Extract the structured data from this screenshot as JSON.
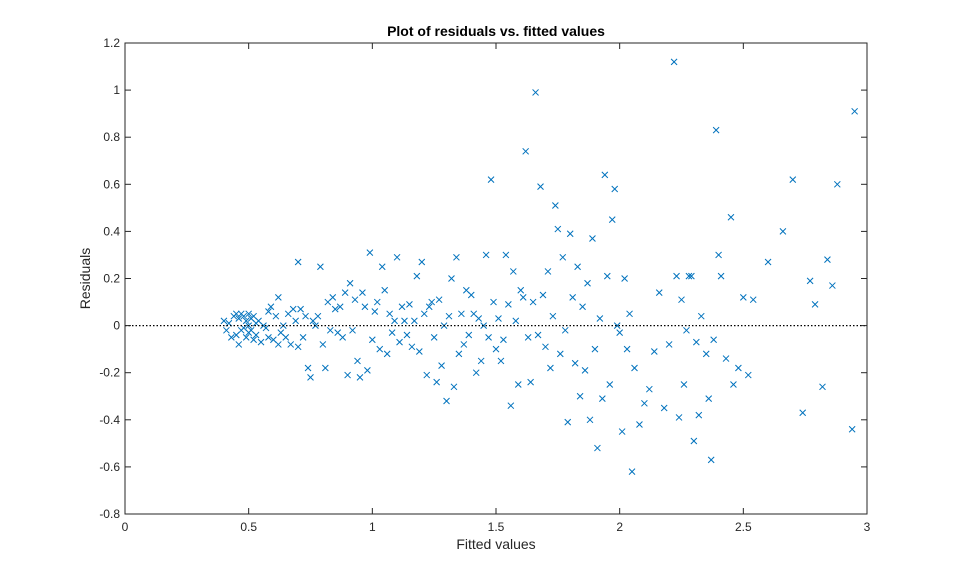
{
  "chart_data": {
    "type": "scatter",
    "title": "Plot of residuals vs. fitted values",
    "xlabel": "Fitted values",
    "ylabel": "Residuals",
    "xlim": [
      0,
      3
    ],
    "ylim": [
      -0.8,
      1.2
    ],
    "xticks": [
      0,
      0.5,
      1,
      1.5,
      2,
      2.5,
      3
    ],
    "xtick_labels": [
      "0",
      "0.5",
      "1",
      "1.5",
      "2",
      "2.5",
      "3"
    ],
    "yticks": [
      -0.8,
      -0.6,
      -0.4,
      -0.2,
      0,
      0.2,
      0.4,
      0.6,
      0.8,
      1,
      1.2
    ],
    "ytick_labels": [
      "-0.8",
      "-0.6",
      "-0.4",
      "-0.2",
      "0",
      "0.2",
      "0.4",
      "0.6",
      "0.8",
      "1",
      "1.2"
    ],
    "grid": false,
    "marker": "x",
    "marker_color": "#0072BD",
    "reference_line": {
      "y": 0,
      "style": "dotted",
      "color": "#000000"
    },
    "points": [
      [
        0.4,
        0.02
      ],
      [
        0.41,
        -0.02
      ],
      [
        0.42,
        0.01
      ],
      [
        0.43,
        -0.05
      ],
      [
        0.44,
        0.04
      ],
      [
        0.45,
        0.05
      ],
      [
        0.45,
        -0.04
      ],
      [
        0.46,
        0.03
      ],
      [
        0.46,
        -0.08
      ],
      [
        0.47,
        0.05
      ],
      [
        0.47,
        -0.02
      ],
      [
        0.48,
        0.04
      ],
      [
        0.48,
        -0.01
      ],
      [
        0.49,
        0.02
      ],
      [
        0.49,
        -0.05
      ],
      [
        0.5,
        0.05
      ],
      [
        0.5,
        0.0
      ],
      [
        0.5,
        -0.03
      ],
      [
        0.51,
        0.03
      ],
      [
        0.51,
        -0.02
      ],
      [
        0.52,
        0.04
      ],
      [
        0.52,
        -0.06
      ],
      [
        0.53,
        0.01
      ],
      [
        0.53,
        -0.04
      ],
      [
        0.54,
        0.02
      ],
      [
        0.55,
        -0.07
      ],
      [
        0.56,
        0.0
      ],
      [
        0.57,
        -0.01
      ],
      [
        0.58,
        0.06
      ],
      [
        0.58,
        -0.05
      ],
      [
        0.59,
        0.08
      ],
      [
        0.6,
        -0.06
      ],
      [
        0.61,
        0.04
      ],
      [
        0.62,
        -0.08
      ],
      [
        0.62,
        0.12
      ],
      [
        0.63,
        -0.03
      ],
      [
        0.64,
        0.0
      ],
      [
        0.65,
        -0.05
      ],
      [
        0.66,
        0.05
      ],
      [
        0.67,
        -0.08
      ],
      [
        0.68,
        0.07
      ],
      [
        0.69,
        0.02
      ],
      [
        0.7,
        0.27
      ],
      [
        0.7,
        -0.09
      ],
      [
        0.71,
        0.07
      ],
      [
        0.72,
        -0.05
      ],
      [
        0.73,
        0.04
      ],
      [
        0.74,
        -0.18
      ],
      [
        0.75,
        -0.22
      ],
      [
        0.76,
        0.02
      ],
      [
        0.77,
        0.0
      ],
      [
        0.78,
        0.04
      ],
      [
        0.79,
        0.25
      ],
      [
        0.8,
        -0.08
      ],
      [
        0.81,
        -0.18
      ],
      [
        0.82,
        0.1
      ],
      [
        0.83,
        -0.02
      ],
      [
        0.84,
        0.12
      ],
      [
        0.85,
        0.07
      ],
      [
        0.86,
        -0.03
      ],
      [
        0.87,
        0.08
      ],
      [
        0.88,
        -0.05
      ],
      [
        0.89,
        0.14
      ],
      [
        0.9,
        -0.21
      ],
      [
        0.91,
        0.18
      ],
      [
        0.92,
        -0.02
      ],
      [
        0.93,
        0.11
      ],
      [
        0.94,
        -0.15
      ],
      [
        0.95,
        -0.22
      ],
      [
        0.96,
        0.14
      ],
      [
        0.97,
        0.08
      ],
      [
        0.98,
        -0.19
      ],
      [
        0.99,
        0.31
      ],
      [
        1.0,
        -0.06
      ],
      [
        1.01,
        0.06
      ],
      [
        1.02,
        0.1
      ],
      [
        1.03,
        -0.1
      ],
      [
        1.04,
        0.25
      ],
      [
        1.05,
        0.15
      ],
      [
        1.06,
        -0.12
      ],
      [
        1.07,
        0.05
      ],
      [
        1.08,
        -0.03
      ],
      [
        1.09,
        0.02
      ],
      [
        1.1,
        0.29
      ],
      [
        1.11,
        -0.07
      ],
      [
        1.12,
        0.08
      ],
      [
        1.13,
        0.02
      ],
      [
        1.14,
        -0.04
      ],
      [
        1.15,
        0.09
      ],
      [
        1.16,
        -0.09
      ],
      [
        1.17,
        0.02
      ],
      [
        1.18,
        0.21
      ],
      [
        1.19,
        -0.11
      ],
      [
        1.2,
        0.27
      ],
      [
        1.21,
        0.05
      ],
      [
        1.22,
        -0.21
      ],
      [
        1.23,
        0.08
      ],
      [
        1.24,
        0.1
      ],
      [
        1.25,
        -0.05
      ],
      [
        1.26,
        -0.24
      ],
      [
        1.27,
        0.11
      ],
      [
        1.28,
        -0.17
      ],
      [
        1.29,
        0.0
      ],
      [
        1.3,
        -0.32
      ],
      [
        1.31,
        0.04
      ],
      [
        1.32,
        0.2
      ],
      [
        1.33,
        -0.26
      ],
      [
        1.34,
        0.29
      ],
      [
        1.35,
        -0.12
      ],
      [
        1.36,
        0.05
      ],
      [
        1.37,
        -0.08
      ],
      [
        1.38,
        0.15
      ],
      [
        1.39,
        -0.04
      ],
      [
        1.4,
        0.13
      ],
      [
        1.41,
        0.05
      ],
      [
        1.42,
        -0.2
      ],
      [
        1.43,
        0.03
      ],
      [
        1.44,
        -0.15
      ],
      [
        1.45,
        0.0
      ],
      [
        1.46,
        0.3
      ],
      [
        1.47,
        -0.05
      ],
      [
        1.48,
        0.62
      ],
      [
        1.49,
        0.1
      ],
      [
        1.5,
        -0.1
      ],
      [
        1.51,
        0.03
      ],
      [
        1.52,
        -0.15
      ],
      [
        1.53,
        -0.06
      ],
      [
        1.54,
        0.3
      ],
      [
        1.55,
        0.09
      ],
      [
        1.56,
        -0.34
      ],
      [
        1.57,
        0.23
      ],
      [
        1.58,
        0.02
      ],
      [
        1.59,
        -0.25
      ],
      [
        1.6,
        0.15
      ],
      [
        1.61,
        0.12
      ],
      [
        1.62,
        0.74
      ],
      [
        1.63,
        -0.05
      ],
      [
        1.64,
        -0.24
      ],
      [
        1.65,
        0.1
      ],
      [
        1.66,
        0.99
      ],
      [
        1.67,
        -0.04
      ],
      [
        1.68,
        0.59
      ],
      [
        1.69,
        0.13
      ],
      [
        1.7,
        -0.09
      ],
      [
        1.71,
        0.23
      ],
      [
        1.72,
        -0.18
      ],
      [
        1.73,
        0.04
      ],
      [
        1.74,
        0.51
      ],
      [
        1.75,
        0.41
      ],
      [
        1.76,
        -0.12
      ],
      [
        1.77,
        0.29
      ],
      [
        1.78,
        -0.02
      ],
      [
        1.79,
        -0.41
      ],
      [
        1.8,
        0.39
      ],
      [
        1.81,
        0.12
      ],
      [
        1.82,
        -0.16
      ],
      [
        1.83,
        0.25
      ],
      [
        1.84,
        -0.3
      ],
      [
        1.85,
        0.08
      ],
      [
        1.86,
        -0.19
      ],
      [
        1.87,
        0.18
      ],
      [
        1.88,
        -0.4
      ],
      [
        1.89,
        0.37
      ],
      [
        1.9,
        -0.1
      ],
      [
        1.91,
        -0.52
      ],
      [
        1.92,
        0.03
      ],
      [
        1.93,
        -0.31
      ],
      [
        1.94,
        0.64
      ],
      [
        1.95,
        0.21
      ],
      [
        1.96,
        -0.25
      ],
      [
        1.97,
        0.45
      ],
      [
        1.98,
        0.58
      ],
      [
        1.99,
        0.0
      ],
      [
        2.0,
        -0.03
      ],
      [
        2.01,
        -0.45
      ],
      [
        2.02,
        0.2
      ],
      [
        2.03,
        -0.1
      ],
      [
        2.04,
        0.05
      ],
      [
        2.05,
        -0.62
      ],
      [
        2.06,
        -0.18
      ],
      [
        2.08,
        -0.42
      ],
      [
        2.1,
        -0.33
      ],
      [
        2.12,
        -0.27
      ],
      [
        2.14,
        -0.11
      ],
      [
        2.16,
        0.14
      ],
      [
        2.18,
        -0.35
      ],
      [
        2.2,
        -0.08
      ],
      [
        2.22,
        1.12
      ],
      [
        2.23,
        0.21
      ],
      [
        2.24,
        -0.39
      ],
      [
        2.25,
        0.11
      ],
      [
        2.26,
        -0.25
      ],
      [
        2.27,
        -0.02
      ],
      [
        2.28,
        0.21
      ],
      [
        2.29,
        0.21
      ],
      [
        2.3,
        -0.49
      ],
      [
        2.31,
        -0.07
      ],
      [
        2.32,
        -0.38
      ],
      [
        2.33,
        0.04
      ],
      [
        2.35,
        -0.12
      ],
      [
        2.36,
        -0.31
      ],
      [
        2.37,
        -0.57
      ],
      [
        2.38,
        -0.06
      ],
      [
        2.39,
        0.83
      ],
      [
        2.4,
        0.3
      ],
      [
        2.41,
        0.21
      ],
      [
        2.43,
        -0.14
      ],
      [
        2.45,
        0.46
      ],
      [
        2.46,
        -0.25
      ],
      [
        2.48,
        -0.18
      ],
      [
        2.5,
        0.12
      ],
      [
        2.52,
        -0.21
      ],
      [
        2.54,
        0.11
      ],
      [
        2.6,
        0.27
      ],
      [
        2.66,
        0.4
      ],
      [
        2.7,
        0.62
      ],
      [
        2.74,
        -0.37
      ],
      [
        2.77,
        0.19
      ],
      [
        2.79,
        0.09
      ],
      [
        2.82,
        -0.26
      ],
      [
        2.84,
        0.28
      ],
      [
        2.86,
        0.17
      ],
      [
        2.88,
        0.6
      ],
      [
        2.94,
        -0.44
      ],
      [
        2.95,
        0.91
      ]
    ]
  }
}
